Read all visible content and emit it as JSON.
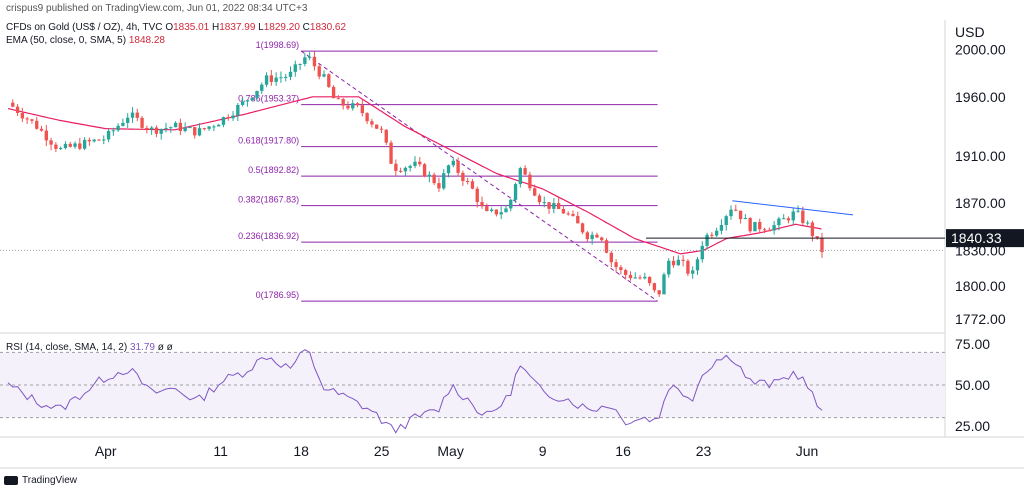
{
  "header": {
    "publisher": "crispus9 published on TradingView.com, Jun 01, 2022 08:34 UTC+3",
    "symbol": "CFDs on Gold (US$ / OZ), 4h, TVC",
    "ohlc": [
      {
        "k": "O",
        "v": "1835.01"
      },
      {
        "k": "H",
        "v": "1837.99"
      },
      {
        "k": "L",
        "v": "1829.20"
      },
      {
        "k": "C",
        "v": "1830.62"
      }
    ],
    "ema_label": "EMA (50, close, 0, SMA, 5)",
    "ema_value": "1848.28",
    "rsi_label": "RSI (14, close, SMA, 14, 2)",
    "rsi_value": "31.79",
    "rsi_extra": "ø  ø"
  },
  "currency": "USD",
  "price_axis": [
    "2000.00",
    "1960.00",
    "1910.00",
    "1870.00",
    "1830.00",
    "1800.00",
    "1772.00"
  ],
  "price_ticks": [
    2000,
    1960,
    1910,
    1870,
    1830,
    1800,
    1772
  ],
  "rsi_axis": [
    "75.00",
    "50.00",
    "25.00"
  ],
  "rsi_ticks": [
    75,
    50,
    25
  ],
  "current_price_label": "1840.33",
  "footer": {
    "brand": "TradingView"
  },
  "colors": {
    "up": "#26a69a",
    "down": "#ef5350",
    "ema": "#e91e63",
    "fib": "#8e24aa",
    "rsi": "#7e57c2",
    "trend": "#2962ff"
  },
  "chart_data": [
    {
      "type": "candlestick",
      "title": "CFDs on Gold (US$ / OZ), 4h, TVC",
      "ylabel": "USD",
      "ylim": [
        1760,
        2025
      ],
      "x_tick_labels": [
        "Apr",
        "11",
        "18",
        "25",
        "May",
        "9",
        "16",
        "23",
        "Jun"
      ],
      "x_tick_days": [
        0,
        10,
        17,
        24,
        30,
        38,
        45,
        52,
        61
      ],
      "x_range_days": [
        -8.5,
        73
      ],
      "fib_retracement": [
        {
          "level": "1",
          "price": 1998.69
        },
        {
          "level": "0.786",
          "price": 1953.37
        },
        {
          "level": "0.618",
          "price": 1917.8
        },
        {
          "level": "0.5",
          "price": 1892.82
        },
        {
          "level": "0.382",
          "price": 1867.83
        },
        {
          "level": "0.236",
          "price": 1836.92
        },
        {
          "level": "0",
          "price": 1786.95
        }
      ],
      "fib_range_days": [
        17,
        48
      ],
      "horizontal_line": 1840.33,
      "trendline": {
        "from": {
          "day": 54.5,
          "price": 1872
        },
        "to": {
          "day": 65,
          "price": 1860
        }
      },
      "close_anchors": [
        {
          "day": -8.5,
          "price": 1955
        },
        {
          "day": -6,
          "price": 1935
        },
        {
          "day": -4,
          "price": 1915
        },
        {
          "day": -2,
          "price": 1920
        },
        {
          "day": 0,
          "price": 1925
        },
        {
          "day": 2,
          "price": 1945
        },
        {
          "day": 4,
          "price": 1932
        },
        {
          "day": 6,
          "price": 1935
        },
        {
          "day": 8,
          "price": 1930
        },
        {
          "day": 10,
          "price": 1940
        },
        {
          "day": 12,
          "price": 1955
        },
        {
          "day": 14,
          "price": 1975
        },
        {
          "day": 16,
          "price": 1978
        },
        {
          "day": 17.5,
          "price": 1995
        },
        {
          "day": 19,
          "price": 1975
        },
        {
          "day": 20,
          "price": 1955
        },
        {
          "day": 22,
          "price": 1950
        },
        {
          "day": 24,
          "price": 1930
        },
        {
          "day": 25,
          "price": 1900
        },
        {
          "day": 27,
          "price": 1902
        },
        {
          "day": 29,
          "price": 1885
        },
        {
          "day": 30,
          "price": 1905
        },
        {
          "day": 32,
          "price": 1880
        },
        {
          "day": 33,
          "price": 1860
        },
        {
          "day": 35,
          "price": 1865
        },
        {
          "day": 36,
          "price": 1900
        },
        {
          "day": 38,
          "price": 1870
        },
        {
          "day": 40,
          "price": 1862
        },
        {
          "day": 42,
          "price": 1842
        },
        {
          "day": 43,
          "price": 1845
        },
        {
          "day": 44,
          "price": 1820
        },
        {
          "day": 45,
          "price": 1810
        },
        {
          "day": 47,
          "price": 1805
        },
        {
          "day": 48,
          "price": 1790
        },
        {
          "day": 49,
          "price": 1822
        },
        {
          "day": 50,
          "price": 1820
        },
        {
          "day": 51,
          "price": 1808
        },
        {
          "day": 52,
          "price": 1840
        },
        {
          "day": 53,
          "price": 1848
        },
        {
          "day": 54.5,
          "price": 1868
        },
        {
          "day": 56,
          "price": 1850
        },
        {
          "day": 58,
          "price": 1850
        },
        {
          "day": 60,
          "price": 1862
        },
        {
          "day": 61,
          "price": 1852
        },
        {
          "day": 61.7,
          "price": 1840
        },
        {
          "day": 62.3,
          "price": 1830
        }
      ],
      "ema_anchors": [
        {
          "day": -8.5,
          "price": 1950
        },
        {
          "day": -4,
          "price": 1940
        },
        {
          "day": 0,
          "price": 1933
        },
        {
          "day": 6,
          "price": 1932
        },
        {
          "day": 12,
          "price": 1945
        },
        {
          "day": 18,
          "price": 1960
        },
        {
          "day": 22,
          "price": 1960
        },
        {
          "day": 26,
          "price": 1935
        },
        {
          "day": 30,
          "price": 1915
        },
        {
          "day": 34,
          "price": 1895
        },
        {
          "day": 38,
          "price": 1882
        },
        {
          "day": 42,
          "price": 1862
        },
        {
          "day": 46,
          "price": 1840
        },
        {
          "day": 50,
          "price": 1827
        },
        {
          "day": 52,
          "price": 1830
        },
        {
          "day": 54,
          "price": 1840
        },
        {
          "day": 57,
          "price": 1845
        },
        {
          "day": 60,
          "price": 1852
        },
        {
          "day": 62.3,
          "price": 1848
        }
      ]
    },
    {
      "type": "line",
      "title": "RSI (14, close, SMA, 14, 2)",
      "ylim": [
        20,
        80
      ],
      "levels": [
        70,
        50,
        30
      ],
      "rsi_anchors": [
        {
          "day": -8.5,
          "value": 50
        },
        {
          "day": -6,
          "value": 40
        },
        {
          "day": -4,
          "value": 35
        },
        {
          "day": -2,
          "value": 45
        },
        {
          "day": 0,
          "value": 55
        },
        {
          "day": 2,
          "value": 60
        },
        {
          "day": 4,
          "value": 45
        },
        {
          "day": 6,
          "value": 48
        },
        {
          "day": 8,
          "value": 40
        },
        {
          "day": 10,
          "value": 52
        },
        {
          "day": 12,
          "value": 58
        },
        {
          "day": 14,
          "value": 68
        },
        {
          "day": 16,
          "value": 60
        },
        {
          "day": 17.5,
          "value": 72
        },
        {
          "day": 19,
          "value": 48
        },
        {
          "day": 21,
          "value": 42
        },
        {
          "day": 23,
          "value": 35
        },
        {
          "day": 25,
          "value": 22
        },
        {
          "day": 27,
          "value": 30
        },
        {
          "day": 29,
          "value": 35
        },
        {
          "day": 30,
          "value": 50
        },
        {
          "day": 32,
          "value": 38
        },
        {
          "day": 33,
          "value": 30
        },
        {
          "day": 35,
          "value": 42
        },
        {
          "day": 36,
          "value": 62
        },
        {
          "day": 38,
          "value": 45
        },
        {
          "day": 40,
          "value": 42
        },
        {
          "day": 42,
          "value": 35
        },
        {
          "day": 44,
          "value": 38
        },
        {
          "day": 45,
          "value": 28
        },
        {
          "day": 47,
          "value": 30
        },
        {
          "day": 48,
          "value": 28
        },
        {
          "day": 49,
          "value": 50
        },
        {
          "day": 51,
          "value": 42
        },
        {
          "day": 52,
          "value": 58
        },
        {
          "day": 53,
          "value": 65
        },
        {
          "day": 54.5,
          "value": 68
        },
        {
          "day": 56,
          "value": 52
        },
        {
          "day": 58,
          "value": 50
        },
        {
          "day": 60,
          "value": 58
        },
        {
          "day": 61,
          "value": 50
        },
        {
          "day": 62.3,
          "value": 31.79
        }
      ]
    }
  ]
}
